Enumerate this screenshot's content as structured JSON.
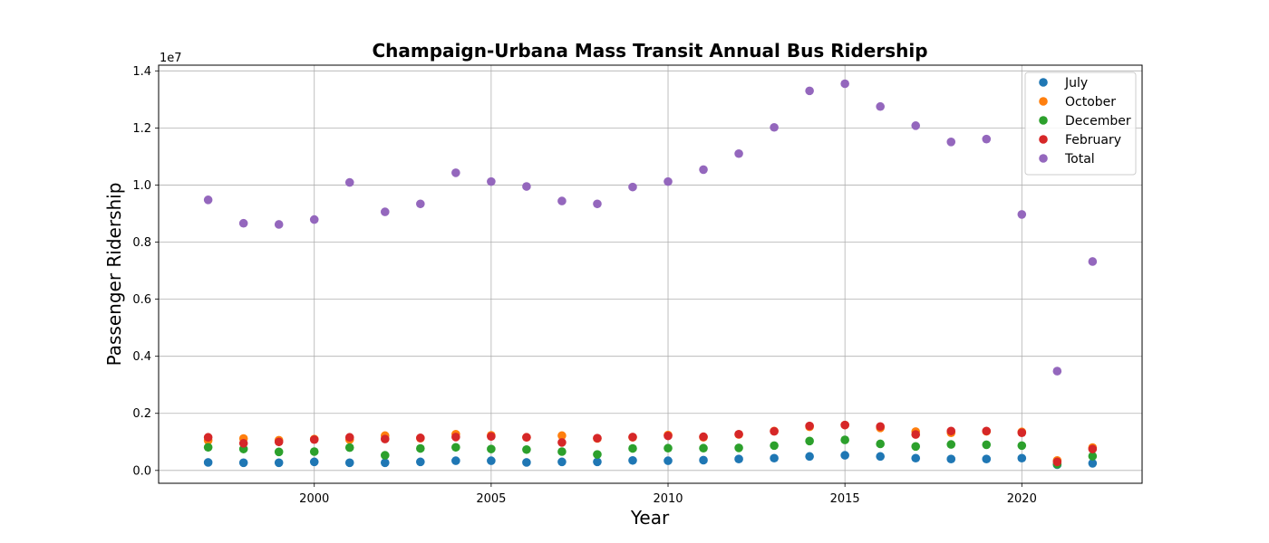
{
  "chart_data": {
    "type": "scatter",
    "title": "Champaign-Urbana Mass Transit Annual Bus Ridership",
    "xlabel": "Year",
    "ylabel": "Passenger Ridership",
    "y_offset_label": "1e7",
    "xlim": [
      1995.6,
      2023.4
    ],
    "ylim": [
      -0.045,
      1.42
    ],
    "x_ticks": [
      2000,
      2005,
      2010,
      2015,
      2020
    ],
    "y_ticks": [
      0.0,
      0.2,
      0.4,
      0.6,
      0.8,
      1.0,
      1.2,
      1.4
    ],
    "y_tick_labels": [
      "0.0",
      "0.2",
      "0.4",
      "0.6",
      "0.8",
      "1.0",
      "1.2",
      "1.4"
    ],
    "grid": true,
    "legend_position": "top-right",
    "x": [
      1997,
      1998,
      1999,
      2000,
      2001,
      2002,
      2003,
      2004,
      2005,
      2006,
      2007,
      2008,
      2009,
      2010,
      2011,
      2012,
      2013,
      2014,
      2015,
      2016,
      2017,
      2018,
      2019,
      2020,
      2021,
      2022
    ],
    "series": [
      {
        "name": "July",
        "color": "#1f77b4",
        "values": [
          0.028,
          0.027,
          0.027,
          0.03,
          0.027,
          0.027,
          0.03,
          0.034,
          0.034,
          0.028,
          0.03,
          0.03,
          0.035,
          0.034,
          0.036,
          0.04,
          0.043,
          0.049,
          0.053,
          0.049,
          0.043,
          0.04,
          0.04,
          0.043,
          0.02,
          0.025
        ]
      },
      {
        "name": "October",
        "color": "#ff7f0e",
        "values": [
          0.105,
          0.112,
          0.106,
          0.11,
          0.108,
          0.122,
          0.113,
          0.127,
          0.123,
          0.116,
          0.122,
          0.112,
          0.116,
          0.124,
          0.116,
          0.126,
          0.138,
          0.153,
          0.159,
          0.149,
          0.136,
          0.132,
          0.137,
          0.135,
          0.035,
          0.08
        ]
      },
      {
        "name": "December",
        "color": "#2ca02c",
        "values": [
          0.081,
          0.075,
          0.065,
          0.066,
          0.08,
          0.053,
          0.077,
          0.081,
          0.075,
          0.073,
          0.066,
          0.056,
          0.077,
          0.078,
          0.078,
          0.079,
          0.087,
          0.103,
          0.107,
          0.093,
          0.084,
          0.091,
          0.09,
          0.087,
          0.022,
          0.05
        ]
      },
      {
        "name": "February",
        "color": "#d62728",
        "values": [
          0.116,
          0.095,
          0.1,
          0.108,
          0.116,
          0.11,
          0.114,
          0.117,
          0.119,
          0.116,
          0.098,
          0.113,
          0.117,
          0.121,
          0.118,
          0.127,
          0.137,
          0.156,
          0.159,
          0.154,
          0.126,
          0.138,
          0.138,
          0.132,
          0.03,
          0.075
        ]
      },
      {
        "name": "Total",
        "color": "#9467bd",
        "values": [
          0.948,
          0.866,
          0.862,
          0.879,
          1.009,
          0.906,
          0.934,
          1.043,
          1.012,
          0.995,
          0.944,
          0.934,
          0.993,
          1.012,
          1.054,
          1.11,
          1.202,
          1.33,
          1.355,
          1.275,
          1.208,
          1.151,
          1.161,
          0.897,
          0.348,
          0.732
        ]
      }
    ]
  }
}
